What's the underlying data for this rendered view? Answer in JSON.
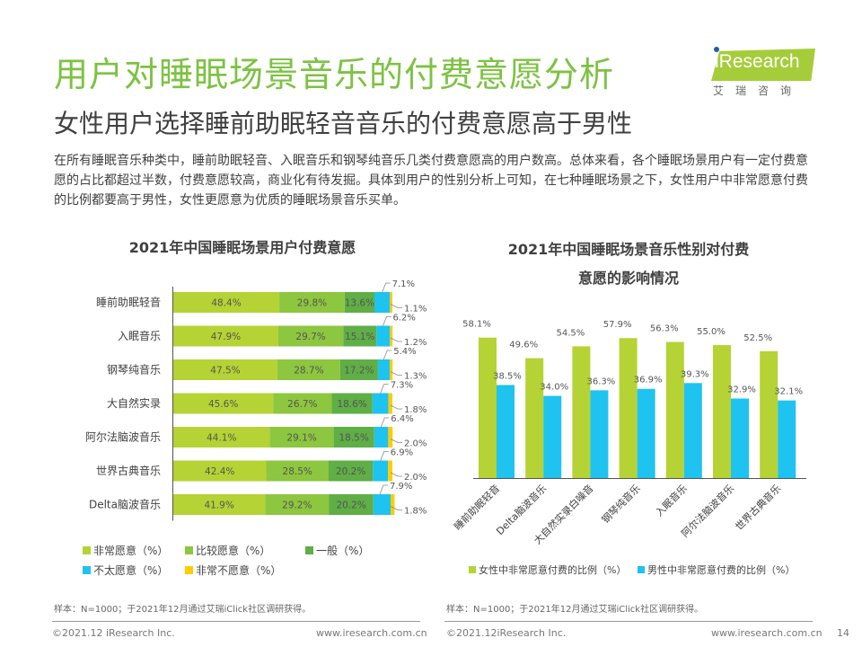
{
  "header": {
    "title": "用户对睡眠场景音乐的付费意愿分析",
    "subtitle": "女性用户选择睡前助眠轻音音乐的付费意愿高于男性",
    "description": "在所有睡眠音乐种类中，睡前助眠轻音、入眠音乐和钢琴纯音乐几类付费意愿高的用户数高。总体来看，各个睡眠场景用户有一定付费意愿的占比都超过半数，付费意愿较高，商业化有待发掘。具体到用户的性别分析上可知，在七种睡眠场景之下，女性用户中非常愿意付费的比例都要高于男性，女性更愿意为优质的睡眠场景音乐买单。"
  },
  "logo": {
    "brand": "iResearch",
    "chinese": "艾瑞咨询",
    "color": "#a5cd39"
  },
  "chart_data": [
    {
      "type": "bar",
      "orientation": "horizontal-stacked-100",
      "title": "2021年中国睡眠场景用户付费意愿",
      "categories": [
        "睡前助眠轻音",
        "入眠音乐",
        "钢琴纯音乐",
        "大自然实录",
        "阿尔法脑波音乐",
        "世界古典音乐",
        "Delta脑波音乐"
      ],
      "series": [
        {
          "name": "非常愿意（%）",
          "color": "#b5d334",
          "values": [
            48.4,
            47.9,
            47.5,
            45.6,
            44.1,
            42.4,
            41.9
          ]
        },
        {
          "name": "比较愿意（%）",
          "color": "#8dc63f",
          "values": [
            29.8,
            29.7,
            28.7,
            26.7,
            29.1,
            28.5,
            29.2
          ]
        },
        {
          "name": "一般（%）",
          "color": "#5fae46",
          "values": [
            13.6,
            15.1,
            17.2,
            18.6,
            18.5,
            20.2,
            20.2
          ]
        },
        {
          "name": "不太愿意（%）",
          "color": "#1ec3ef",
          "values": [
            7.1,
            6.2,
            5.4,
            7.3,
            6.4,
            6.9,
            7.9
          ]
        },
        {
          "name": "非常不愿意（%）",
          "color": "#ffcc00",
          "values": [
            1.1,
            1.2,
            1.3,
            1.8,
            2.0,
            2.0,
            1.8
          ]
        }
      ],
      "xlim": [
        0,
        100
      ],
      "grid": false,
      "legend": "bottom",
      "note": "样本：N=1000；于2021年12月通过艾瑞iClick社区调研获得。"
    },
    {
      "type": "bar",
      "orientation": "vertical-grouped",
      "title": "2021年中国睡眠场景音乐性别对付费意愿的影响情况",
      "title_lines": [
        "2021年中国睡眠场景音乐性别对付费",
        "意愿的影响情况"
      ],
      "categories": [
        "睡前助眠轻音",
        "Delta脑波音乐",
        "大自然实录白噪音",
        "钢琴纯音乐",
        "入眠音乐",
        "阿尔法脑波音乐",
        "世界古典音乐"
      ],
      "series": [
        {
          "name": "女性中非常愿意付费的比例（%）",
          "color": "#b5d334",
          "values": [
            58.1,
            49.6,
            54.5,
            57.9,
            56.3,
            55.0,
            52.5
          ]
        },
        {
          "name": "男性中非常愿意付费的比例（%）",
          "color": "#1ec3ef",
          "values": [
            38.5,
            34.0,
            36.3,
            36.9,
            39.3,
            32.9,
            32.1
          ]
        }
      ],
      "ylim": [
        0,
        60
      ],
      "grid": false,
      "legend": "bottom",
      "note": "样本：N=1000；于2021年12月通过艾瑞iClick社区调研获得。"
    }
  ],
  "footer": {
    "left_copyright": "©2021.12 iResearch Inc.",
    "left_url": "www.iresearch.com.cn",
    "right_copyright": "©2021.12iResearch Inc.",
    "right_url": "www.iresearch.com.cn",
    "page_number": "14"
  }
}
